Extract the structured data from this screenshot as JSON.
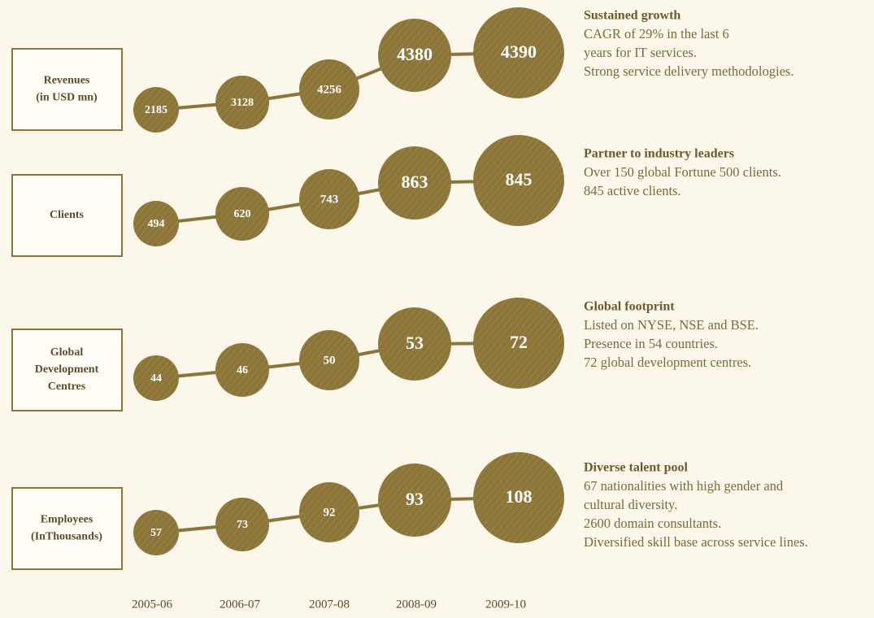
{
  "rows": [
    {
      "label": [
        "Revenues",
        "(in USD mn)"
      ],
      "values": [
        2185,
        3128,
        4256,
        4380,
        4390
      ],
      "title": "Sustained growth",
      "lines": [
        "CAGR of 29% in the last 6",
        "years for IT services.",
        "Strong service delivery methodologies."
      ]
    },
    {
      "label": [
        "Clients"
      ],
      "values": [
        494,
        620,
        743,
        863,
        845
      ],
      "title": "Partner to industry leaders",
      "lines": [
        "Over 150 global Fortune 500 clients.",
        "845 active clients."
      ]
    },
    {
      "label": [
        "Global",
        "Development",
        "Centres"
      ],
      "values": [
        44,
        46,
        50,
        53,
        72
      ],
      "title": "Global footprint",
      "lines": [
        "Listed on NYSE, NSE and BSE.",
        "Presence in 54 countries.",
        "72 global development centres."
      ]
    },
    {
      "label": [
        "Employees",
        "(InThousands)"
      ],
      "values": [
        57,
        73,
        92,
        93,
        108
      ],
      "title": "Diverse talent pool",
      "lines": [
        "67 nationalities with high gender and",
        "cultural diversity.",
        "2600 domain consultants.",
        "Diversified skill base across service lines."
      ]
    }
  ],
  "years": [
    "2005-06",
    "2006-07",
    "2007-08",
    "2008-09",
    "2009-10"
  ]
}
